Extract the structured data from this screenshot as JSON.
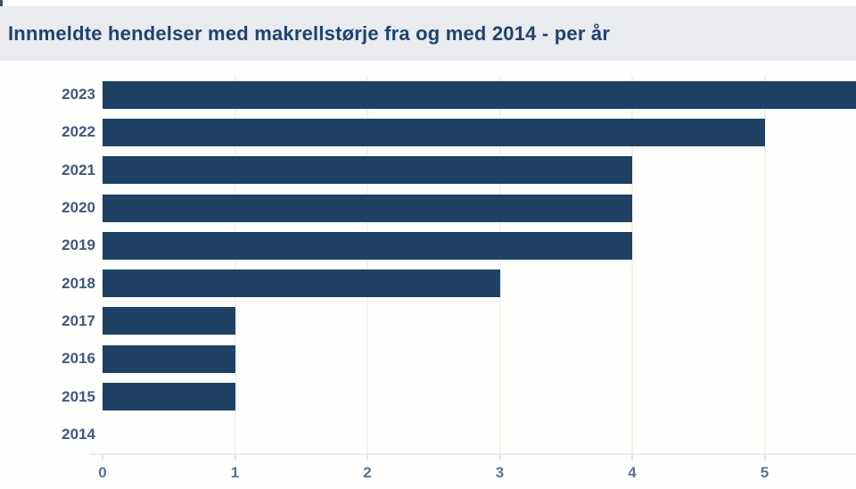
{
  "title": "Innmeldte hendelser med makrellstørje fra og med 2014 - per år",
  "colors": {
    "bar": "#1e4164",
    "title_text": "#1d4370",
    "year_label": "#3e5a78",
    "tick_label": "#5e728a",
    "header_bg": "#e9ebee",
    "gridline": "#f3f2ef",
    "axis_line": "#edecea"
  },
  "chart_data": {
    "type": "bar",
    "orientation": "horizontal",
    "title": "Innmeldte hendelser med makrellstørje fra og med 2014 - per år",
    "categories": [
      "2023",
      "2022",
      "2021",
      "2020",
      "2019",
      "2018",
      "2017",
      "2016",
      "2015",
      "2014"
    ],
    "values": [
      6,
      5,
      4,
      4,
      4,
      3,
      1,
      1,
      1,
      0
    ],
    "xlabel": "",
    "ylabel": "",
    "x_ticks": [
      0,
      1,
      2,
      3,
      4,
      5
    ],
    "xlim": [
      0,
      5.69
    ],
    "grid": "vertical",
    "legend": "none",
    "clipped_bars": [
      "2023"
    ]
  }
}
